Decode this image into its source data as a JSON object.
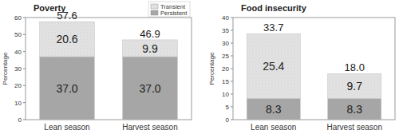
{
  "chart_data": [
    {
      "type": "bar",
      "title": "Poverty",
      "y_label": "Percentage",
      "categories": [
        "Lean season",
        "Harvest season"
      ],
      "stacked": true,
      "data_labels": true,
      "legend": "upper right",
      "ylim": [
        0,
        60
      ],
      "yticks": [
        0,
        10,
        20,
        30,
        40,
        50,
        60
      ],
      "series": [
        {
          "name": "Persistent",
          "color": "#a6a6a6",
          "values": [
            37.0,
            37.0
          ],
          "value_labels": [
            "37.0",
            "37.0"
          ]
        },
        {
          "name": "Transient",
          "color": "#e4e4e4",
          "values": [
            20.6,
            9.9
          ],
          "value_labels": [
            "20.6",
            "9.9"
          ]
        }
      ],
      "totals": [
        57.6,
        46.9
      ],
      "total_labels": [
        "57.6",
        "46.9"
      ]
    },
    {
      "type": "bar",
      "title": "Food insecurity",
      "y_label": "Percentage",
      "categories": [
        "Lean season",
        "Harvest season"
      ],
      "stacked": true,
      "data_labels": true,
      "ylim": [
        0,
        40
      ],
      "yticks": [
        0,
        5,
        10,
        15,
        20,
        25,
        30,
        35,
        40
      ],
      "series": [
        {
          "color": "#a6a6a6",
          "values": [
            8.3,
            8.3
          ],
          "value_labels": [
            "8.3",
            "8.3"
          ]
        },
        {
          "color": "#e4e4e4",
          "values": [
            25.4,
            9.7
          ],
          "value_labels": [
            "25.4",
            "9.7"
          ]
        }
      ],
      "totals": [
        33.7,
        18.0
      ],
      "total_labels": [
        "33.7",
        "18.0"
      ]
    }
  ]
}
